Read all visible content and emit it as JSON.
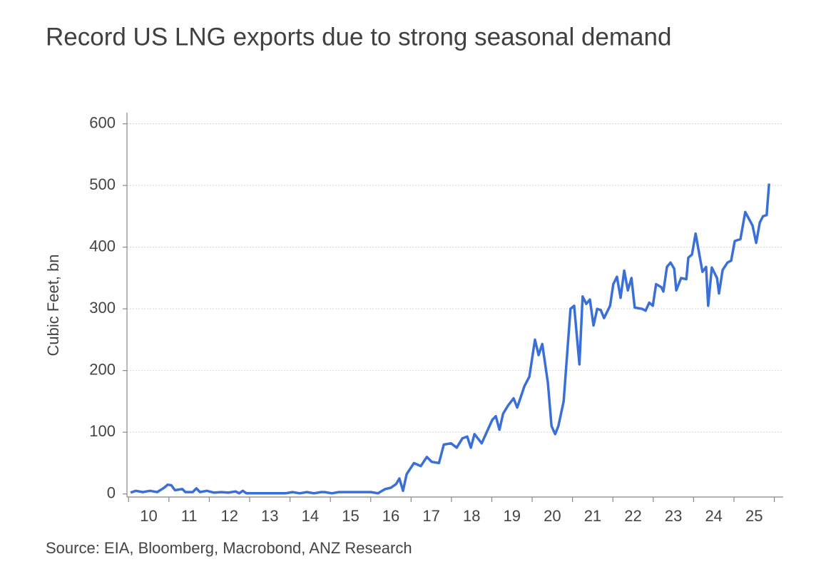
{
  "chart_data": {
    "type": "line",
    "title": "Record US LNG exports due to strong seasonal demand",
    "ylabel": "Cubic Feet, bn",
    "source": "Source: EIA, Bloomberg, Macrobond, ANZ Research",
    "x": [
      10.05,
      10.18,
      10.35,
      10.53,
      10.71,
      10.88,
      10.97,
      11.06,
      11.15,
      11.33,
      11.41,
      11.59,
      11.68,
      11.77,
      11.94,
      12.12,
      12.3,
      12.47,
      12.65,
      12.74,
      12.83,
      12.92,
      13.09,
      13.89,
      14.06,
      14.24,
      14.42,
      14.59,
      14.77,
      14.86,
      15.04,
      15.21,
      15.65,
      16.01,
      16.18,
      16.36,
      16.5,
      16.63,
      16.71,
      16.8,
      16.89,
      17.07,
      17.24,
      17.39,
      17.51,
      17.69,
      17.81,
      17.99,
      18.13,
      18.27,
      18.39,
      18.48,
      18.57,
      18.75,
      19.01,
      19.1,
      19.19,
      19.28,
      19.4,
      19.54,
      19.63,
      19.81,
      19.93,
      20.07,
      20.16,
      20.25,
      20.39,
      20.48,
      20.57,
      20.65,
      20.78,
      20.87,
      20.95,
      21.04,
      21.17,
      21.25,
      21.34,
      21.43,
      21.52,
      21.61,
      21.7,
      21.78,
      21.93,
      22.01,
      22.1,
      22.19,
      22.28,
      22.37,
      22.46,
      22.54,
      22.72,
      22.81,
      22.9,
      22.99,
      23.07,
      23.2,
      23.25,
      23.34,
      23.43,
      23.52,
      23.57,
      23.69,
      23.82,
      23.87,
      23.96,
      24.05,
      24.22,
      24.31,
      24.36,
      24.45,
      24.58,
      24.63,
      24.72,
      24.84,
      24.93,
      25.02,
      25.16,
      25.28,
      25.46,
      25.55,
      25.64,
      25.72,
      25.81,
      25.87
    ],
    "series": [
      {
        "name": "US LNG exports",
        "color": "#3a6fd8",
        "values": [
          2,
          5,
          3,
          5,
          3,
          10,
          15,
          14,
          6,
          8,
          3,
          3,
          9,
          3,
          5,
          2,
          3,
          2,
          4,
          1,
          5,
          1,
          1,
          1,
          3,
          1,
          3,
          1,
          3,
          3,
          1,
          3,
          3,
          3,
          1,
          8,
          10,
          16,
          25,
          5,
          32,
          50,
          45,
          60,
          52,
          50,
          80,
          82,
          75,
          90,
          93,
          75,
          97,
          82,
          120,
          126,
          104,
          130,
          143,
          155,
          140,
          175,
          190,
          250,
          225,
          243,
          180,
          110,
          97,
          110,
          150,
          230,
          300,
          305,
          210,
          320,
          308,
          315,
          273,
          300,
          298,
          285,
          305,
          340,
          352,
          318,
          362,
          330,
          350,
          302,
          300,
          297,
          310,
          305,
          340,
          335,
          328,
          368,
          375,
          365,
          330,
          350,
          348,
          383,
          388,
          422,
          360,
          368,
          305,
          367,
          350,
          325,
          363,
          375,
          378,
          410,
          413,
          457,
          435,
          407,
          440,
          450,
          452,
          503
        ]
      }
    ],
    "xlim": [
      9.96,
      26.22
    ],
    "xticks": [
      {
        "value": 10.5,
        "label": "10"
      },
      {
        "value": 11.5,
        "label": "11"
      },
      {
        "value": 12.5,
        "label": "12"
      },
      {
        "value": 13.5,
        "label": "13"
      },
      {
        "value": 14.5,
        "label": "14"
      },
      {
        "value": 15.5,
        "label": "15"
      },
      {
        "value": 16.5,
        "label": "16"
      },
      {
        "value": 17.5,
        "label": "17"
      },
      {
        "value": 18.5,
        "label": "18"
      },
      {
        "value": 19.5,
        "label": "19"
      },
      {
        "value": 20.5,
        "label": "20"
      },
      {
        "value": 21.5,
        "label": "21"
      },
      {
        "value": 22.5,
        "label": "22"
      },
      {
        "value": 23.5,
        "label": "23"
      },
      {
        "value": 24.5,
        "label": "24"
      },
      {
        "value": 25.5,
        "label": "25"
      }
    ],
    "ylim": [
      -5,
      618
    ],
    "yticks": [
      0,
      100,
      200,
      300,
      400,
      500,
      600
    ],
    "grid": true
  }
}
